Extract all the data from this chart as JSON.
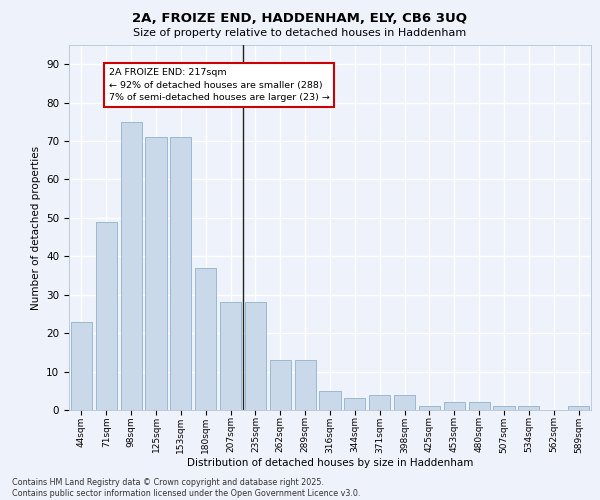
{
  "title_line1": "2A, FROIZE END, HADDENHAM, ELY, CB6 3UQ",
  "title_line2": "Size of property relative to detached houses in Haddenham",
  "xlabel": "Distribution of detached houses by size in Haddenham",
  "ylabel": "Number of detached properties",
  "categories": [
    "44sqm",
    "71sqm",
    "98sqm",
    "125sqm",
    "153sqm",
    "180sqm",
    "207sqm",
    "235sqm",
    "262sqm",
    "289sqm",
    "316sqm",
    "344sqm",
    "371sqm",
    "398sqm",
    "425sqm",
    "453sqm",
    "480sqm",
    "507sqm",
    "534sqm",
    "562sqm",
    "589sqm"
  ],
  "values": [
    23,
    49,
    75,
    71,
    71,
    37,
    28,
    28,
    13,
    13,
    5,
    3,
    4,
    4,
    1,
    2,
    2,
    1,
    1,
    0,
    1
  ],
  "bar_color": "#c9d9ea",
  "bar_edge_color": "#9ab8d0",
  "vline_x_index": 7,
  "annotation_line1": "2A FROIZE END: 217sqm",
  "annotation_line2": "← 92% of detached houses are smaller (288)",
  "annotation_line3": "7% of semi-detached houses are larger (23) →",
  "annotation_box_facecolor": "#ffffff",
  "annotation_box_edgecolor": "#cc0000",
  "vline_color": "#222222",
  "ylim": [
    0,
    95
  ],
  "yticks": [
    0,
    10,
    20,
    30,
    40,
    50,
    60,
    70,
    80,
    90
  ],
  "background_color": "#eef2fb",
  "grid_color": "#ffffff",
  "footer_line1": "Contains HM Land Registry data © Crown copyright and database right 2025.",
  "footer_line2": "Contains public sector information licensed under the Open Government Licence v3.0."
}
